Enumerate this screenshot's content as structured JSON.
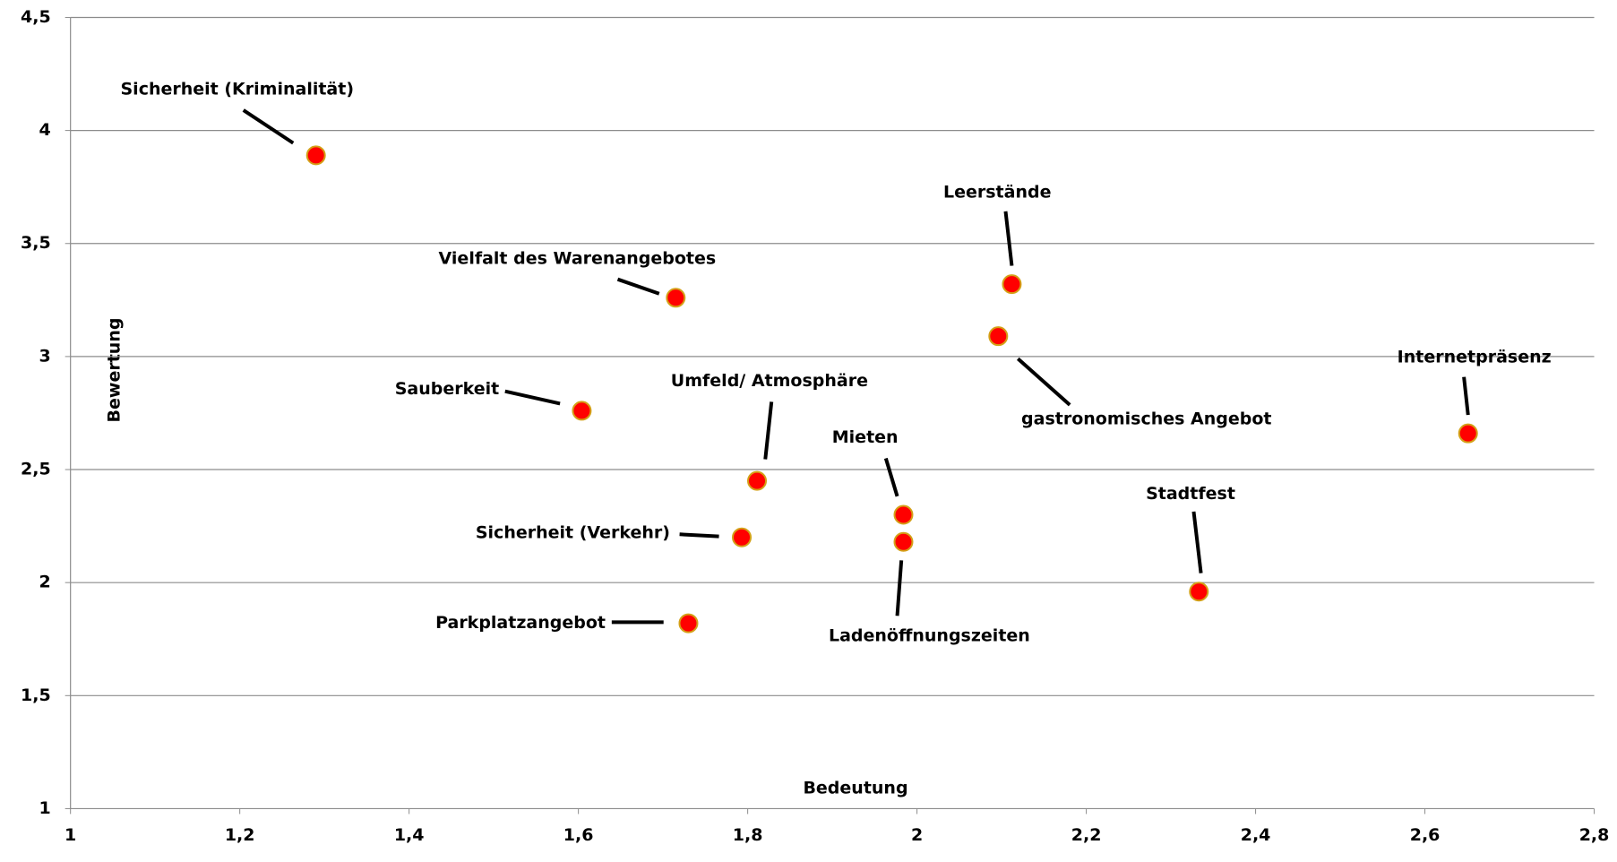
{
  "chart_data": {
    "type": "scatter",
    "xlabel": "Bedeutung",
    "ylabel": "Bewertung",
    "labels": [
      "Sicherheit (Kriminalität)",
      "Vielfalt des Warenangebotes",
      "Leerstände",
      "gastronomisches Angebot",
      "Internetpräsenz",
      "Sauberkeit",
      "Umfeld/ Atmosphäre",
      "Mieten",
      "Ladenöffnungszeiten",
      "Sicherheit (Verkehr)",
      "Parkplatzangebot",
      "Stadtfest"
    ],
    "x": [
      1.29,
      1.715,
      2.112,
      2.096,
      2.651,
      1.604,
      1.811,
      1.984,
      1.984,
      1.793,
      1.73,
      2.333
    ],
    "values": [
      3.89,
      3.26,
      3.32,
      3.09,
      2.66,
      2.76,
      2.45,
      2.3,
      2.18,
      2.2,
      1.82,
      1.96
    ],
    "color": "#ff0000",
    "xlim": [
      1,
      2.8
    ],
    "xticks": [
      1,
      {
        "value": 1.2,
        "label": "1,2"
      },
      {
        "value": 1.4,
        "label": "1,4"
      },
      {
        "value": 1.6,
        "label": "1,6"
      },
      {
        "value": 1.8,
        "label": "1,8"
      },
      2,
      {
        "value": 2.2,
        "label": "2,2"
      },
      {
        "value": 2.4,
        "label": "2,4"
      },
      {
        "value": 2.6,
        "label": "2,6"
      },
      {
        "value": 2.8,
        "label": "2,8"
      }
    ],
    "ylim": [
      1,
      4.5
    ],
    "yticks": [
      1,
      {
        "value": 1.5,
        "label": "1,5"
      },
      2,
      {
        "value": 2.5,
        "label": "2,5"
      },
      3,
      {
        "value": 3.5,
        "label": "3,5"
      },
      4,
      {
        "value": 4.5,
        "label": "4,5"
      }
    ],
    "grid": true
  }
}
